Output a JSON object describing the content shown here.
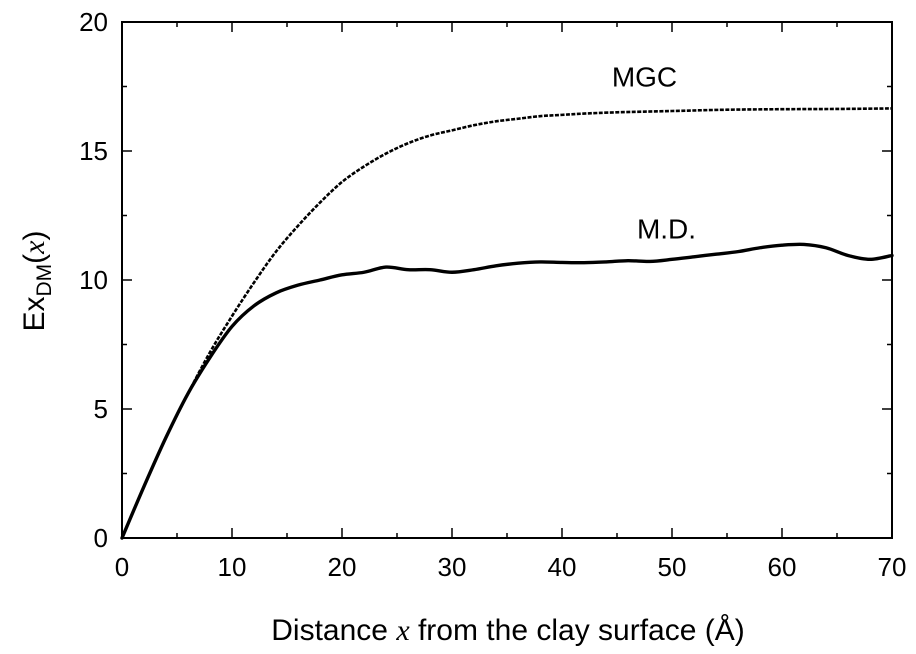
{
  "chart_data": {
    "type": "line",
    "xlabel": {
      "prefix": "Distance ",
      "var": "x",
      "suffix": " from the clay surface (Å)"
    },
    "ylabel": {
      "base": "Ex",
      "sub": "DM",
      "open": "(",
      "var": "x",
      "close": ")"
    },
    "xlim": [
      0,
      70
    ],
    "ylim": [
      0,
      20
    ],
    "xticks": [
      0,
      10,
      20,
      30,
      40,
      50,
      60,
      70
    ],
    "yticks": [
      0,
      5,
      10,
      15,
      20
    ],
    "grid": false,
    "series": [
      {
        "name": "MGC",
        "style": "dashed",
        "color": "#000000",
        "x": [
          0,
          2,
          4,
          6,
          8,
          10,
          12,
          14,
          16,
          18,
          20,
          22,
          24,
          26,
          28,
          30,
          32,
          34,
          36,
          38,
          40,
          42,
          45,
          50,
          55,
          60,
          65,
          70
        ],
        "y": [
          0,
          2.0,
          3.9,
          5.6,
          7.2,
          8.6,
          9.9,
          11.1,
          12.1,
          13.0,
          13.8,
          14.4,
          14.9,
          15.3,
          15.6,
          15.8,
          16.0,
          16.15,
          16.25,
          16.35,
          16.4,
          16.45,
          16.5,
          16.55,
          16.6,
          16.62,
          16.63,
          16.65
        ]
      },
      {
        "name": "M.D.",
        "style": "solid",
        "color": "#000000",
        "x": [
          0,
          2,
          4,
          6,
          8,
          10,
          12,
          14,
          16,
          18,
          20,
          22,
          24,
          26,
          28,
          30,
          32,
          34,
          36,
          38,
          40,
          42,
          44,
          46,
          48,
          50,
          52,
          54,
          56,
          58,
          60,
          62,
          64,
          66,
          68,
          70
        ],
        "y": [
          0,
          2.0,
          3.9,
          5.6,
          7.0,
          8.2,
          9.0,
          9.5,
          9.8,
          10.0,
          10.2,
          10.3,
          10.5,
          10.4,
          10.4,
          10.3,
          10.4,
          10.55,
          10.65,
          10.7,
          10.68,
          10.67,
          10.7,
          10.75,
          10.72,
          10.8,
          10.9,
          11.0,
          11.1,
          11.25,
          11.35,
          11.38,
          11.25,
          10.95,
          10.8,
          10.95
        ]
      }
    ],
    "annotations": [
      {
        "text": "MGC",
        "x": 47.5,
        "y": 17.5
      },
      {
        "text": "M.D.",
        "x": 49.5,
        "y": 11.6
      }
    ]
  }
}
